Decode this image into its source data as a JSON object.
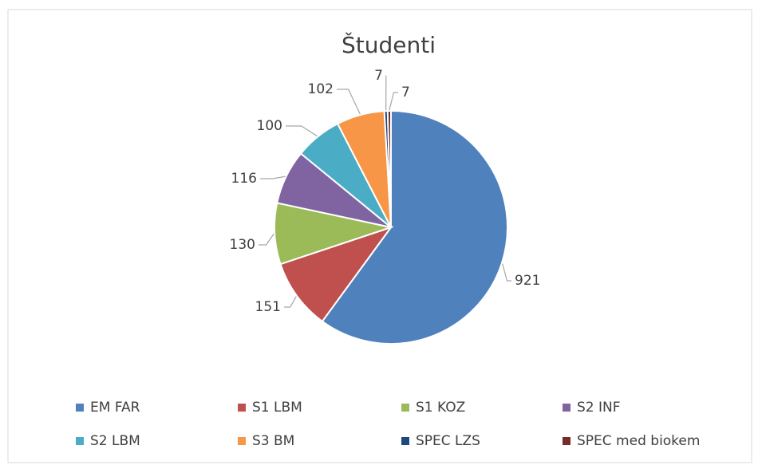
{
  "chart_data": {
    "type": "pie",
    "title": "Študenti",
    "categories": [
      "EM FAR",
      "S1 LBM",
      "S1 KOZ",
      "S2 INF",
      "S2 LBM",
      "S3 BM",
      "SPEC LZS",
      "SPEC med biokem"
    ],
    "values": [
      921,
      151,
      130,
      116,
      100,
      102,
      7,
      7
    ],
    "colors": [
      "#4f81bd",
      "#c0504d",
      "#9bbb59",
      "#8064a2",
      "#4bacc6",
      "#f79646",
      "#1f497d",
      "#772c2a"
    ],
    "legend": "bottom"
  }
}
